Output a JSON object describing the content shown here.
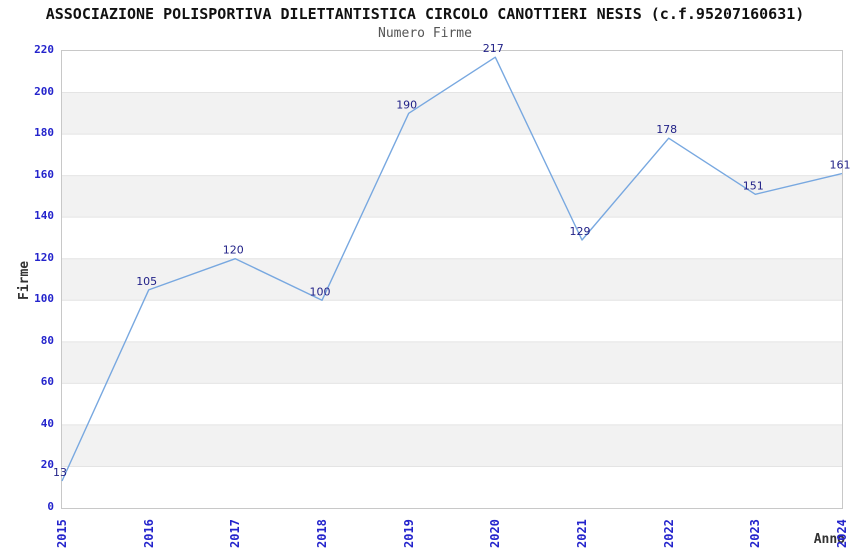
{
  "chart_data": {
    "type": "line",
    "title": "ASSOCIAZIONE POLISPORTIVA DILETTANTISTICA CIRCOLO CANOTTIERI NESIS (c.f.95207160631)",
    "subtitle": "Numero Firme",
    "xlabel": "Anno",
    "ylabel": "Firme",
    "x": [
      "2015",
      "2016",
      "2017",
      "2018",
      "2019",
      "2020",
      "2021",
      "2022",
      "2023",
      "2024"
    ],
    "values": [
      13,
      105,
      120,
      100,
      190,
      217,
      129,
      178,
      151,
      161
    ],
    "point_labels": [
      "13",
      "105",
      "120",
      "100",
      "190",
      "217",
      "129",
      "178",
      "151",
      "161"
    ],
    "ylim": [
      0,
      220
    ],
    "ytick_step": 20,
    "yticks": [
      0,
      20,
      40,
      60,
      80,
      100,
      120,
      140,
      160,
      180,
      200,
      220
    ],
    "grid": "alternating-horizontal-bands",
    "legend": "none",
    "colors": {
      "line": "#78a8e0",
      "point_label": "#222288",
      "tick_label": "#2424cc",
      "band": "#f2f2f2",
      "grid_line": "#e4e4e4",
      "plot_border": "#c8c8c8",
      "title": "#111111",
      "subtitle": "#555555",
      "axis_title": "#333333"
    }
  }
}
